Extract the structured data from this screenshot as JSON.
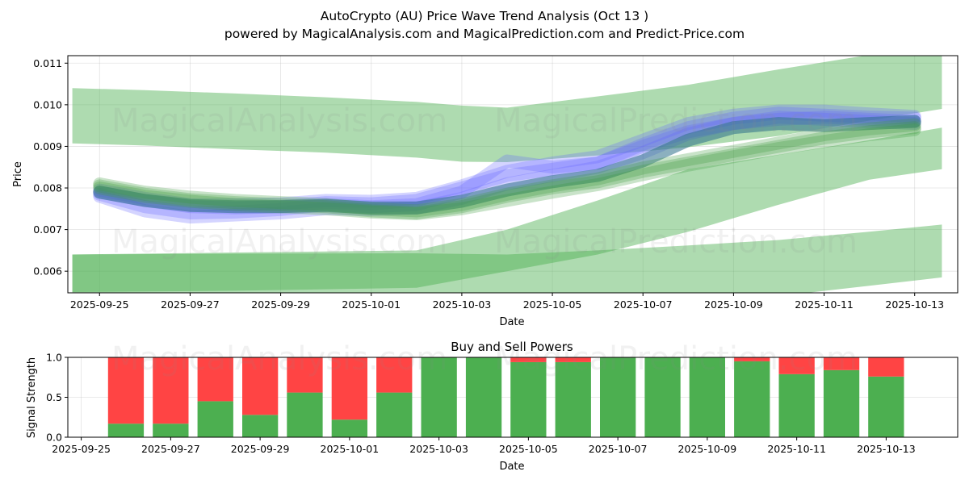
{
  "header": {
    "title_line1": "AutoCrypto (AU) Price Wave Trend Analysis (Oct 13 )",
    "title_line2": "powered by MagicalAnalysis.com and MagicalPrediction.com and Predict-Price.com"
  },
  "watermarks": [
    "MagicalAnalysis.com",
    "MagicalPrediction.com"
  ],
  "colors": {
    "band": "#4caf50",
    "wave_blue": "#6464ff",
    "wave_green": "#3c9a3c",
    "wave_teal": "#2e6f8a",
    "buy": "#4caf50",
    "sell": "#ff4444"
  },
  "chart_data": [
    {
      "type": "area",
      "title": "",
      "xlabel": "Date",
      "ylabel": "Price",
      "ylim": [
        0.00548,
        0.01118
      ],
      "yticks": [
        0.006,
        0.007,
        0.008,
        0.009,
        0.01,
        0.011
      ],
      "ytick_labels": [
        "0.006",
        "0.007",
        "0.008",
        "0.009",
        "0.010",
        "0.011"
      ],
      "xlim": [
        -0.7,
        18.95
      ],
      "xticks": [
        0,
        2,
        4,
        6,
        8,
        10,
        12,
        14,
        16,
        18
      ],
      "xtick_labels": [
        "2025-09-25",
        "2025-09-27",
        "2025-09-29",
        "2025-10-01",
        "2025-10-03",
        "2025-10-05",
        "2025-10-07",
        "2025-10-09",
        "2025-10-11",
        "2025-10-13"
      ],
      "grid": true,
      "bands": [
        {
          "name": "upper band",
          "x": [
            -0.6,
            1,
            3,
            5,
            7,
            8,
            9,
            11,
            13,
            15,
            17,
            18.6
          ],
          "upper": [
            0.0104,
            0.01035,
            0.01027,
            0.01018,
            0.01007,
            0.00998,
            0.00993,
            0.0102,
            0.01048,
            0.01085,
            0.0112,
            0.0114
          ],
          "lower": [
            0.00907,
            0.00902,
            0.00893,
            0.00885,
            0.00873,
            0.00863,
            0.00862,
            0.00878,
            0.00898,
            0.00925,
            0.00962,
            0.0099
          ]
        },
        {
          "name": "middle band",
          "x": [
            -0.6,
            3,
            7,
            9,
            11,
            13,
            15,
            17,
            18.6
          ],
          "upper": [
            0.0064,
            0.00645,
            0.0065,
            0.007,
            0.0077,
            0.00845,
            0.0088,
            0.00915,
            0.00945
          ],
          "lower": [
            0.0055,
            0.00553,
            0.0056,
            0.006,
            0.0064,
            0.00695,
            0.0076,
            0.0082,
            0.00845
          ]
        },
        {
          "name": "lower band",
          "x": [
            -0.6,
            3,
            7,
            9,
            11,
            13,
            15,
            17,
            18.6
          ],
          "upper": [
            0.0064,
            0.00642,
            0.00643,
            0.0064,
            0.0065,
            0.00662,
            0.00675,
            0.00695,
            0.00712
          ],
          "lower": [
            0.0042,
            0.0043,
            0.00445,
            0.0046,
            0.0048,
            0.00505,
            0.0054,
            0.00565,
            0.00585
          ]
        }
      ],
      "series": [
        {
          "name": "wave blue 1",
          "color": "blue",
          "x": [
            0,
            1,
            2,
            3,
            4,
            5,
            6,
            7,
            8,
            9,
            10,
            11,
            12,
            13,
            14,
            15,
            16,
            17,
            18
          ],
          "values": [
            0.00785,
            0.00755,
            0.0074,
            0.00742,
            0.00748,
            0.0076,
            0.00755,
            0.0076,
            0.0079,
            0.00865,
            0.0085,
            0.0086,
            0.00905,
            0.00945,
            0.00968,
            0.0098,
            0.00975,
            0.0097,
            0.00968
          ]
        },
        {
          "name": "wave blue 2",
          "color": "blue",
          "x": [
            0,
            1,
            2,
            3,
            4,
            5,
            6,
            7,
            8,
            9,
            10,
            11,
            12,
            13,
            14,
            15,
            16,
            17,
            18
          ],
          "values": [
            0.0079,
            0.0077,
            0.00755,
            0.00752,
            0.00755,
            0.00765,
            0.00762,
            0.0077,
            0.008,
            0.0083,
            0.00845,
            0.0086,
            0.009,
            0.00935,
            0.00955,
            0.00965,
            0.0097,
            0.00965,
            0.0096
          ]
        },
        {
          "name": "wave blue 3",
          "color": "blue",
          "x": [
            0,
            1,
            2,
            3,
            4,
            5,
            6,
            7,
            8,
            9,
            10,
            11,
            12,
            13,
            14,
            15,
            16,
            17,
            18
          ],
          "values": [
            0.0078,
            0.00745,
            0.0073,
            0.00735,
            0.0074,
            0.0075,
            0.00748,
            0.00752,
            0.00775,
            0.0081,
            0.0083,
            0.0085,
            0.00885,
            0.0093,
            0.00955,
            0.0097,
            0.00965,
            0.0096,
            0.00955
          ]
        },
        {
          "name": "wave blue 4",
          "color": "blue",
          "x": [
            0,
            1,
            2,
            3,
            4,
            5,
            6,
            7,
            8,
            9,
            10,
            11,
            12,
            13,
            14,
            15,
            16,
            17,
            18
          ],
          "values": [
            0.00795,
            0.00775,
            0.0076,
            0.0076,
            0.00762,
            0.0077,
            0.00768,
            0.00775,
            0.00805,
            0.0084,
            0.0086,
            0.00875,
            0.00915,
            0.00955,
            0.00975,
            0.00985,
            0.00985,
            0.00978,
            0.00972
          ]
        },
        {
          "name": "wave teal",
          "color": "teal",
          "x": [
            0,
            1,
            2,
            3,
            4,
            5,
            6,
            7,
            8,
            9,
            10,
            11,
            12,
            13,
            14,
            15,
            16,
            17,
            18
          ],
          "values": [
            0.0079,
            0.0077,
            0.00758,
            0.00755,
            0.00755,
            0.00758,
            0.00752,
            0.00752,
            0.00768,
            0.00795,
            0.00815,
            0.0083,
            0.00865,
            0.00915,
            0.00945,
            0.00955,
            0.0095,
            0.00955,
            0.0096
          ]
        },
        {
          "name": "wave green 1",
          "color": "green",
          "x": [
            0,
            1,
            2,
            3,
            4,
            5,
            6,
            7,
            8,
            9,
            10,
            11,
            12,
            13,
            14,
            15,
            16,
            17,
            18
          ],
          "values": [
            0.00805,
            0.00785,
            0.00772,
            0.00765,
            0.0076,
            0.00755,
            0.00745,
            0.0074,
            0.00755,
            0.0078,
            0.008,
            0.00815,
            0.0084,
            0.0086,
            0.0088,
            0.009,
            0.0092,
            0.00935,
            0.00945
          ]
        },
        {
          "name": "wave green 2",
          "color": "green",
          "x": [
            0,
            1,
            2,
            3,
            4,
            5,
            6,
            7,
            8,
            9,
            10,
            11,
            12,
            13,
            14,
            15,
            16,
            17,
            18
          ],
          "values": [
            0.008,
            0.0078,
            0.00768,
            0.0076,
            0.00755,
            0.0075,
            0.00742,
            0.00738,
            0.0075,
            0.0077,
            0.0079,
            0.00808,
            0.00832,
            0.00855,
            0.00875,
            0.00895,
            0.00912,
            0.00928,
            0.0094
          ]
        },
        {
          "name": "wave green 3",
          "color": "green",
          "x": [
            0,
            1,
            2,
            3,
            4,
            5,
            6,
            7,
            8,
            9,
            10,
            11,
            12,
            13,
            14,
            15,
            16,
            17,
            18
          ],
          "values": [
            0.0081,
            0.0079,
            0.00778,
            0.0077,
            0.00765,
            0.0076,
            0.0075,
            0.00745,
            0.0076,
            0.00785,
            0.00805,
            0.00822,
            0.00848,
            0.00868,
            0.00888,
            0.00908,
            0.00928,
            0.00942,
            0.00952
          ]
        }
      ]
    },
    {
      "type": "bar",
      "title": "Buy and Sell Powers",
      "xlabel": "Date",
      "ylabel": "Signal Strength",
      "ylim": [
        0,
        1.0
      ],
      "yticks": [
        0.0,
        0.5,
        1.0
      ],
      "ytick_labels": [
        "0.0",
        "0.5",
        "1.0"
      ],
      "xlim": [
        -0.3,
        19.6
      ],
      "xticks": [
        0,
        2,
        4,
        6,
        8,
        10,
        12,
        14,
        16,
        18
      ],
      "xtick_labels": [
        "2025-09-25",
        "2025-09-27",
        "2025-09-29",
        "2025-10-01",
        "2025-10-03",
        "2025-10-05",
        "2025-10-07",
        "2025-10-09",
        "2025-10-11",
        "2025-10-13"
      ],
      "grid": true,
      "x": [
        1,
        2,
        3,
        4,
        5,
        6,
        7,
        8,
        9,
        10,
        11,
        12,
        13,
        14,
        15,
        16,
        17,
        18
      ],
      "series": [
        {
          "name": "Buy",
          "values": [
            0.17,
            0.17,
            0.45,
            0.28,
            0.56,
            0.22,
            0.56,
            1.0,
            1.0,
            0.94,
            0.94,
            1.0,
            1.0,
            1.0,
            0.95,
            0.79,
            0.84,
            0.76
          ]
        },
        {
          "name": "Sell",
          "values": [
            0.83,
            0.83,
            0.55,
            0.72,
            0.44,
            0.78,
            0.44,
            0.0,
            0.0,
            0.06,
            0.06,
            0.0,
            0.0,
            0.0,
            0.05,
            0.21,
            0.16,
            0.24
          ]
        }
      ]
    }
  ]
}
